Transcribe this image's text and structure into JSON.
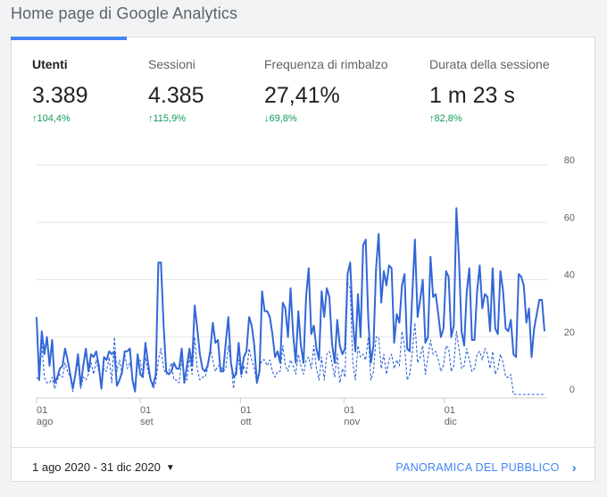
{
  "page_title": "Home page di Google Analytics",
  "metrics": [
    {
      "label": "Utenti",
      "value": "3.389",
      "delta": "104,4%",
      "direction": "up"
    },
    {
      "label": "Sessioni",
      "value": "4.385",
      "delta": "115,9%",
      "direction": "up"
    },
    {
      "label": "Frequenza di rimbalzo",
      "value": "27,41%",
      "delta": "69,8%",
      "direction": "down"
    },
    {
      "label": "Durata della sessione",
      "value": "1 m 23 s",
      "delta": "82,8%",
      "direction": "up"
    }
  ],
  "colors": {
    "accent": "#4285f4",
    "line": "#3367d6",
    "positive": "#0f9d58"
  },
  "chart_data": {
    "type": "line",
    "x_start": "2020-08-01",
    "x_end": "2020-12-31",
    "x_ticks": [
      {
        "date": "2020-08-01",
        "day": "01",
        "month": "ago"
      },
      {
        "date": "2020-09-01",
        "day": "01",
        "month": "set"
      },
      {
        "date": "2020-10-01",
        "day": "01",
        "month": "ott"
      },
      {
        "date": "2020-11-01",
        "day": "01",
        "month": "nov"
      },
      {
        "date": "2020-12-01",
        "day": "01",
        "month": "dic"
      }
    ],
    "y_ticks": [
      "0",
      "20",
      "40",
      "60",
      "80"
    ],
    "ylim": [
      0,
      80
    ],
    "y_axis_side": "right",
    "grid": true,
    "series": [
      {
        "style": "solid",
        "values": [
          27,
          5,
          22,
          14,
          20,
          10,
          19,
          4,
          6,
          9,
          10,
          16,
          12,
          7,
          2,
          7,
          14,
          3,
          10,
          16,
          8,
          14,
          13,
          15,
          10,
          2,
          13,
          12,
          15,
          14,
          15,
          3,
          5,
          8,
          15,
          15,
          16,
          5,
          1,
          14,
          7,
          6,
          18,
          11,
          5,
          3,
          7,
          46,
          46,
          24,
          8,
          7,
          8,
          11,
          9,
          9,
          16,
          4,
          10,
          16,
          10,
          31,
          23,
          14,
          9,
          8,
          10,
          15,
          25,
          18,
          19,
          8,
          8,
          18,
          27,
          11,
          6,
          7,
          18,
          7,
          13,
          15,
          27,
          24,
          17,
          4,
          8,
          36,
          29,
          29,
          27,
          21,
          13,
          15,
          11,
          32,
          30,
          20,
          37,
          21,
          11,
          29,
          17,
          11,
          34,
          44,
          21,
          24,
          16,
          12,
          36,
          27,
          37,
          34,
          18,
          11,
          26,
          17,
          14,
          16,
          42,
          46,
          26,
          15,
          35,
          20,
          52,
          54,
          26,
          11,
          17,
          44,
          56,
          32,
          43,
          38,
          45,
          44,
          18,
          28,
          25,
          38,
          42,
          16,
          15,
          35,
          54,
          27,
          33,
          40,
          18,
          20,
          48,
          34,
          35,
          28,
          20,
          23,
          43,
          41,
          20,
          24,
          65,
          47,
          22,
          17,
          36,
          44,
          19,
          19,
          36,
          45,
          30,
          35,
          34,
          22,
          44,
          23,
          21,
          43,
          36,
          23,
          22,
          26,
          14,
          13,
          42,
          41,
          38,
          25,
          30,
          13,
          23,
          28,
          33,
          33,
          22
        ]
      },
      {
        "style": "dashed",
        "values": [
          6,
          5,
          18,
          6,
          4,
          4,
          6,
          2,
          5,
          7,
          6,
          11,
          8,
          6,
          1,
          8,
          11,
          2,
          6,
          5,
          7,
          11,
          7,
          12,
          8,
          4,
          9,
          8,
          13,
          4,
          20,
          8,
          12,
          7,
          14,
          9,
          11,
          6,
          2,
          11,
          12,
          6,
          13,
          8,
          5,
          2,
          4,
          12,
          16,
          9,
          7,
          8,
          11,
          5,
          5,
          4,
          12,
          6,
          5,
          13,
          7,
          20,
          9,
          5,
          6,
          6,
          9,
          16,
          12,
          8,
          10,
          10,
          8,
          9,
          17,
          11,
          2,
          10,
          12,
          6,
          10,
          7,
          16,
          12,
          9,
          4,
          9,
          12,
          12,
          10,
          12,
          8,
          6,
          8,
          8,
          17,
          10,
          8,
          12,
          10,
          7,
          14,
          10,
          7,
          12,
          13,
          9,
          17,
          9,
          5,
          13,
          5,
          14,
          15,
          11,
          6,
          14,
          4,
          9,
          6,
          39,
          37,
          11,
          5,
          17,
          13,
          14,
          12,
          20,
          5,
          8,
          20,
          20,
          9,
          14,
          7,
          12,
          14,
          9,
          12,
          10,
          22,
          17,
          5,
          7,
          15,
          25,
          11,
          13,
          17,
          7,
          13,
          19,
          14,
          15,
          12,
          8,
          10,
          17,
          16,
          8,
          10,
          22,
          16,
          9,
          10,
          16,
          12,
          8,
          9,
          14,
          15,
          12,
          16,
          14,
          9,
          15,
          7,
          9,
          14,
          11,
          6,
          6,
          7,
          0,
          0,
          0,
          0,
          0,
          0,
          0,
          0,
          0,
          0,
          0,
          0,
          0
        ]
      }
    ]
  },
  "footer": {
    "date_range": "1 ago 2020 - 31 dic 2020",
    "audience_link": "PANORAMICA DEL PUBBLICO"
  }
}
